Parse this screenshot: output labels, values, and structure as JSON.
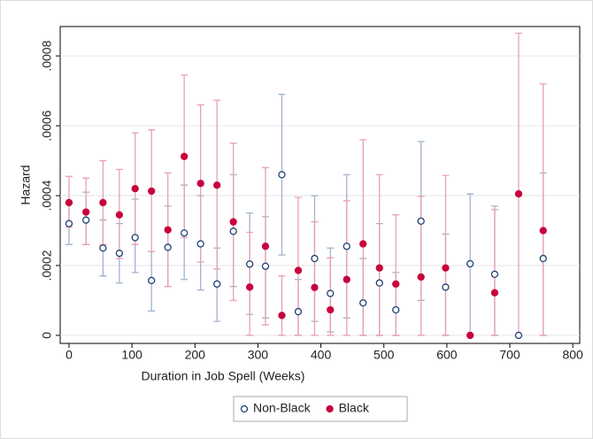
{
  "chart_data": {
    "type": "scatter",
    "x_label": "Duration in Job Spell (Weeks)",
    "y_label": "Hazard",
    "xlim": [
      -14,
      811
    ],
    "ylim": [
      -2.3e-05,
      0.000884
    ],
    "xticks": [
      0,
      100,
      200,
      300,
      400,
      500,
      600,
      700,
      800
    ],
    "yticks": [
      0,
      {
        "value": 0.0002,
        "label": ".0002"
      },
      {
        "value": 0.0004,
        "label": ".0004"
      },
      {
        "value": 0.0006,
        "label": ".0006"
      },
      {
        "value": 0.0008,
        "label": ".0008"
      }
    ],
    "grid": true,
    "legend": "bottom",
    "x": [
      0,
      27,
      54,
      80,
      105,
      131,
      157,
      183,
      209,
      235,
      261,
      287,
      312,
      338,
      364,
      390,
      415,
      441,
      467,
      493,
      519,
      559,
      598,
      637,
      676,
      714,
      753
    ],
    "series": [
      {
        "name": "Non-Black",
        "color": "#1f3f73",
        "errorbar_color": "#9fb4cb",
        "hollow": true,
        "values": [
          0.00032,
          0.00033,
          0.00025,
          0.000235,
          0.00028,
          0.000157,
          0.000252,
          0.000293,
          0.000262,
          0.000147,
          0.000298,
          0.000204,
          0.000198,
          0.00046,
          6.8e-05,
          0.00022,
          0.00012,
          0.000255,
          9.3e-05,
          0.00015,
          7.3e-05,
          0.000327,
          0.000138,
          0.000205,
          0.000175,
          0,
          0.00022
        ],
        "lower": [
          0.00026,
          0.00026,
          0.00017,
          0.00015,
          0.00018,
          7e-05,
          0.00014,
          0.00016,
          0.00013,
          4e-05,
          0.00014,
          6e-05,
          5e-05,
          0.00023,
          0,
          4e-05,
          1e-05,
          5e-05,
          0,
          0,
          0,
          0.0001,
          0,
          0,
          0,
          0,
          0
        ],
        "upper": [
          0.00038,
          0.00041,
          0.00033,
          0.00032,
          0.00039,
          0.00024,
          0.00037,
          0.00043,
          0.0004,
          0.00025,
          0.00046,
          0.00035,
          0.00034,
          0.00069,
          0.00016,
          0.0004,
          0.00025,
          0.00046,
          0.00022,
          0.00032,
          0.00018,
          0.000555,
          0.00029,
          0.000405,
          0.00037,
          0,
          0.000465
        ]
      },
      {
        "name": "Black",
        "color": "#c8003c",
        "errorbar_color": "#e8a0b8",
        "hollow": false,
        "values": [
          0.00038,
          0.000353,
          0.00038,
          0.000345,
          0.00042,
          0.000413,
          0.000302,
          0.000512,
          0.000435,
          0.00043,
          0.000325,
          0.000138,
          0.000255,
          5.7e-05,
          0.000186,
          0.000137,
          7.3e-05,
          0.00016,
          0.000262,
          0.000193,
          0.000147,
          0.000167,
          0.000193,
          0,
          0.000122,
          0.000405,
          0.0003
        ],
        "lower": [
          0.00031,
          0.00026,
          0.00026,
          0.00022,
          0.00026,
          0.00024,
          0.00014,
          0.00028,
          0.00021,
          0.00019,
          0.0001,
          0,
          3e-05,
          0,
          0,
          0,
          0,
          0,
          0,
          0,
          0,
          0,
          0,
          0,
          0,
          0,
          0
        ],
        "upper": [
          0.000455,
          0.00045,
          0.0005,
          0.000475,
          0.00058,
          0.000588,
          0.000465,
          0.000745,
          0.00066,
          0.000673,
          0.00055,
          0.000295,
          0.00048,
          0.00017,
          0.000395,
          0.000325,
          0.000222,
          0.000385,
          0.00056,
          0.00046,
          0.000345,
          0.000398,
          0.000458,
          0,
          0.00036,
          0.000865,
          0.00072
        ]
      }
    ]
  }
}
